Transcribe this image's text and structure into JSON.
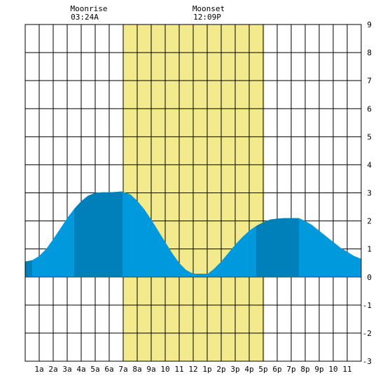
{
  "moon": {
    "rise_label": "Moonrise",
    "rise_time": "03:24A",
    "set_label": "Moonset",
    "set_time": "12:09P"
  },
  "chart_data": {
    "type": "area",
    "title": "",
    "xlabel": "",
    "ylabel": "",
    "xlim": [
      0,
      24
    ],
    "ylim": [
      -3,
      9
    ],
    "grid": true,
    "x_ticks": [
      {
        "x": 1,
        "label": "1a"
      },
      {
        "x": 2,
        "label": "2a"
      },
      {
        "x": 3,
        "label": "3a"
      },
      {
        "x": 4,
        "label": "4a"
      },
      {
        "x": 5,
        "label": "5a"
      },
      {
        "x": 6,
        "label": "6a"
      },
      {
        "x": 7,
        "label": "7a"
      },
      {
        "x": 8,
        "label": "8a"
      },
      {
        "x": 9,
        "label": "9a"
      },
      {
        "x": 10,
        "label": "10"
      },
      {
        "x": 11,
        "label": "11"
      },
      {
        "x": 12,
        "label": "12"
      },
      {
        "x": 13,
        "label": "1p"
      },
      {
        "x": 14,
        "label": "2p"
      },
      {
        "x": 15,
        "label": "3p"
      },
      {
        "x": 16,
        "label": "4p"
      },
      {
        "x": 17,
        "label": "5p"
      },
      {
        "x": 18,
        "label": "6p"
      },
      {
        "x": 19,
        "label": "7p"
      },
      {
        "x": 20,
        "label": "8p"
      },
      {
        "x": 21,
        "label": "9p"
      },
      {
        "x": 22,
        "label": "10"
      },
      {
        "x": 23,
        "label": "11"
      }
    ],
    "y_ticks": [
      9,
      8,
      7,
      6,
      5,
      4,
      3,
      2,
      1,
      0,
      -1,
      -2,
      -3
    ],
    "daylight": {
      "start": 7.0,
      "end": 17.1,
      "color": "#f2ea8c"
    },
    "tide": {
      "color": "#0099dd",
      "night_color": "#0080bb",
      "x": [
        0,
        0.5,
        1,
        1.5,
        2,
        2.5,
        3,
        3.5,
        4,
        4.5,
        5,
        5.5,
        6,
        6.5,
        6.9,
        7.5,
        8,
        8.5,
        9,
        9.5,
        10,
        10.5,
        11,
        11.5,
        12,
        12.5,
        13.05,
        13.5,
        14,
        14.5,
        15,
        15.5,
        16,
        16.5,
        17,
        17.5,
        18,
        18.5,
        19,
        19.5,
        19.55,
        20,
        20.5,
        21,
        21.5,
        22,
        22.5,
        23,
        23.5,
        24
      ],
      "y": [
        0.55,
        0.6,
        0.75,
        1.0,
        1.35,
        1.72,
        2.1,
        2.43,
        2.7,
        2.9,
        3.0,
        3.02,
        3.02,
        3.03,
        3.05,
        2.95,
        2.72,
        2.42,
        2.05,
        1.65,
        1.25,
        0.85,
        0.5,
        0.25,
        0.12,
        0.12,
        0.12,
        0.3,
        0.55,
        0.85,
        1.15,
        1.42,
        1.65,
        1.82,
        1.95,
        2.05,
        2.08,
        2.1,
        2.1,
        2.1,
        2.1,
        2.0,
        1.85,
        1.65,
        1.45,
        1.25,
        1.05,
        0.9,
        0.75,
        0.65
      ],
      "night_bands": [
        [
          0,
          0.5
        ],
        [
          3.5,
          6.95
        ],
        [
          16.5,
          19.55
        ]
      ]
    }
  }
}
